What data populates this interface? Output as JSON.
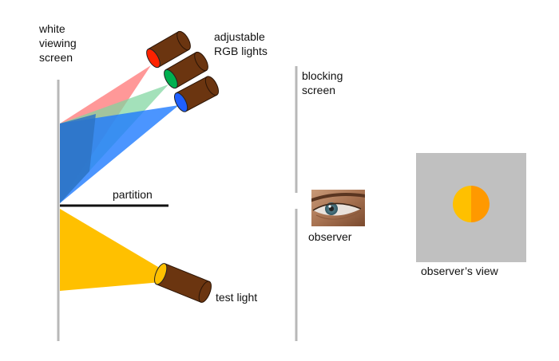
{
  "labels": {
    "screen_line1": "white",
    "screen_line2": "viewing",
    "screen_line3": "screen",
    "rgb_line1": "adjustable",
    "rgb_line2": "RGB lights",
    "blocking_line1": "blocking",
    "blocking_line2": "screen",
    "partition": "partition",
    "observer": "observer",
    "test_light": "test light",
    "observers_view": "observer’s view"
  },
  "lights": {
    "red": {
      "name": "red-light",
      "lens_color": "#ff2200"
    },
    "green": {
      "name": "green-light",
      "lens_color": "#00b050"
    },
    "blue": {
      "name": "blue-light",
      "lens_color": "#1f5fff"
    },
    "test": {
      "name": "test-light",
      "lens_color": "#ffc000"
    }
  },
  "colors": {
    "lamp_body": "#6b3510",
    "red_beam": "#ff7070",
    "green_beam": "#7fd6a0",
    "blue_beam": "#1e7bff",
    "screen_mix": "#2e74c6",
    "test_beam": "#ffc000",
    "field_left": "#ffc000",
    "field_right": "#ff9900",
    "view_background": "#c0c0c0",
    "screen_line": "#b8b8b8"
  }
}
